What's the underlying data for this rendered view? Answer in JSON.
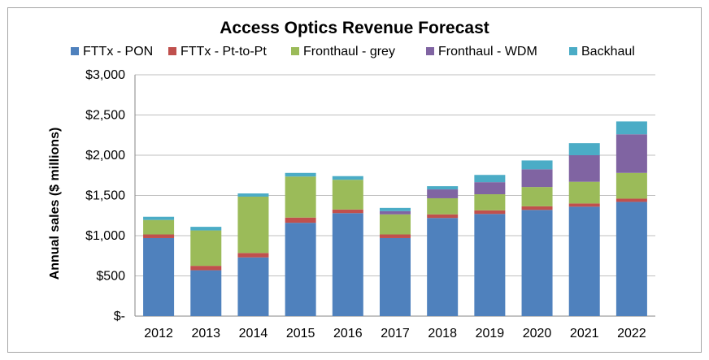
{
  "chart_data": {
    "type": "bar",
    "stacked": true,
    "title": "Access Optics Revenue Forecast",
    "xlabel": "",
    "ylabel": "Annual sales ($ millions)",
    "ylim": [
      0,
      3000
    ],
    "yticks": [
      0,
      500,
      1000,
      1500,
      2000,
      2500,
      3000
    ],
    "ytick_labels": [
      "$-",
      "$500",
      "$1,000",
      "$1,500",
      "$2,000",
      "$2,500",
      "$3,000"
    ],
    "grid": true,
    "legend_position": "top",
    "categories": [
      "2012",
      "2013",
      "2014",
      "2015",
      "2016",
      "2017",
      "2018",
      "2019",
      "2020",
      "2021",
      "2022"
    ],
    "series": [
      {
        "name": "FTTx - PON",
        "color": "#4f81bd",
        "values": [
          970,
          570,
          730,
          1160,
          1280,
          970,
          1220,
          1270,
          1320,
          1360,
          1420
        ]
      },
      {
        "name": "FTTx - Pt-to-Pt",
        "color": "#c0504d",
        "values": [
          45,
          55,
          55,
          65,
          45,
          45,
          45,
          45,
          45,
          40,
          40
        ]
      },
      {
        "name": "Fronthaul - grey",
        "color": "#9bbb59",
        "values": [
          180,
          440,
          700,
          510,
          370,
          250,
          200,
          200,
          240,
          270,
          320
        ]
      },
      {
        "name": "Fronthaul - WDM",
        "color": "#8064a2",
        "values": [
          0,
          0,
          0,
          0,
          0,
          40,
          110,
          150,
          220,
          330,
          480
        ]
      },
      {
        "name": "Backhaul",
        "color": "#4bacc6",
        "values": [
          40,
          45,
          40,
          45,
          45,
          40,
          40,
          90,
          110,
          150,
          160
        ]
      }
    ]
  }
}
